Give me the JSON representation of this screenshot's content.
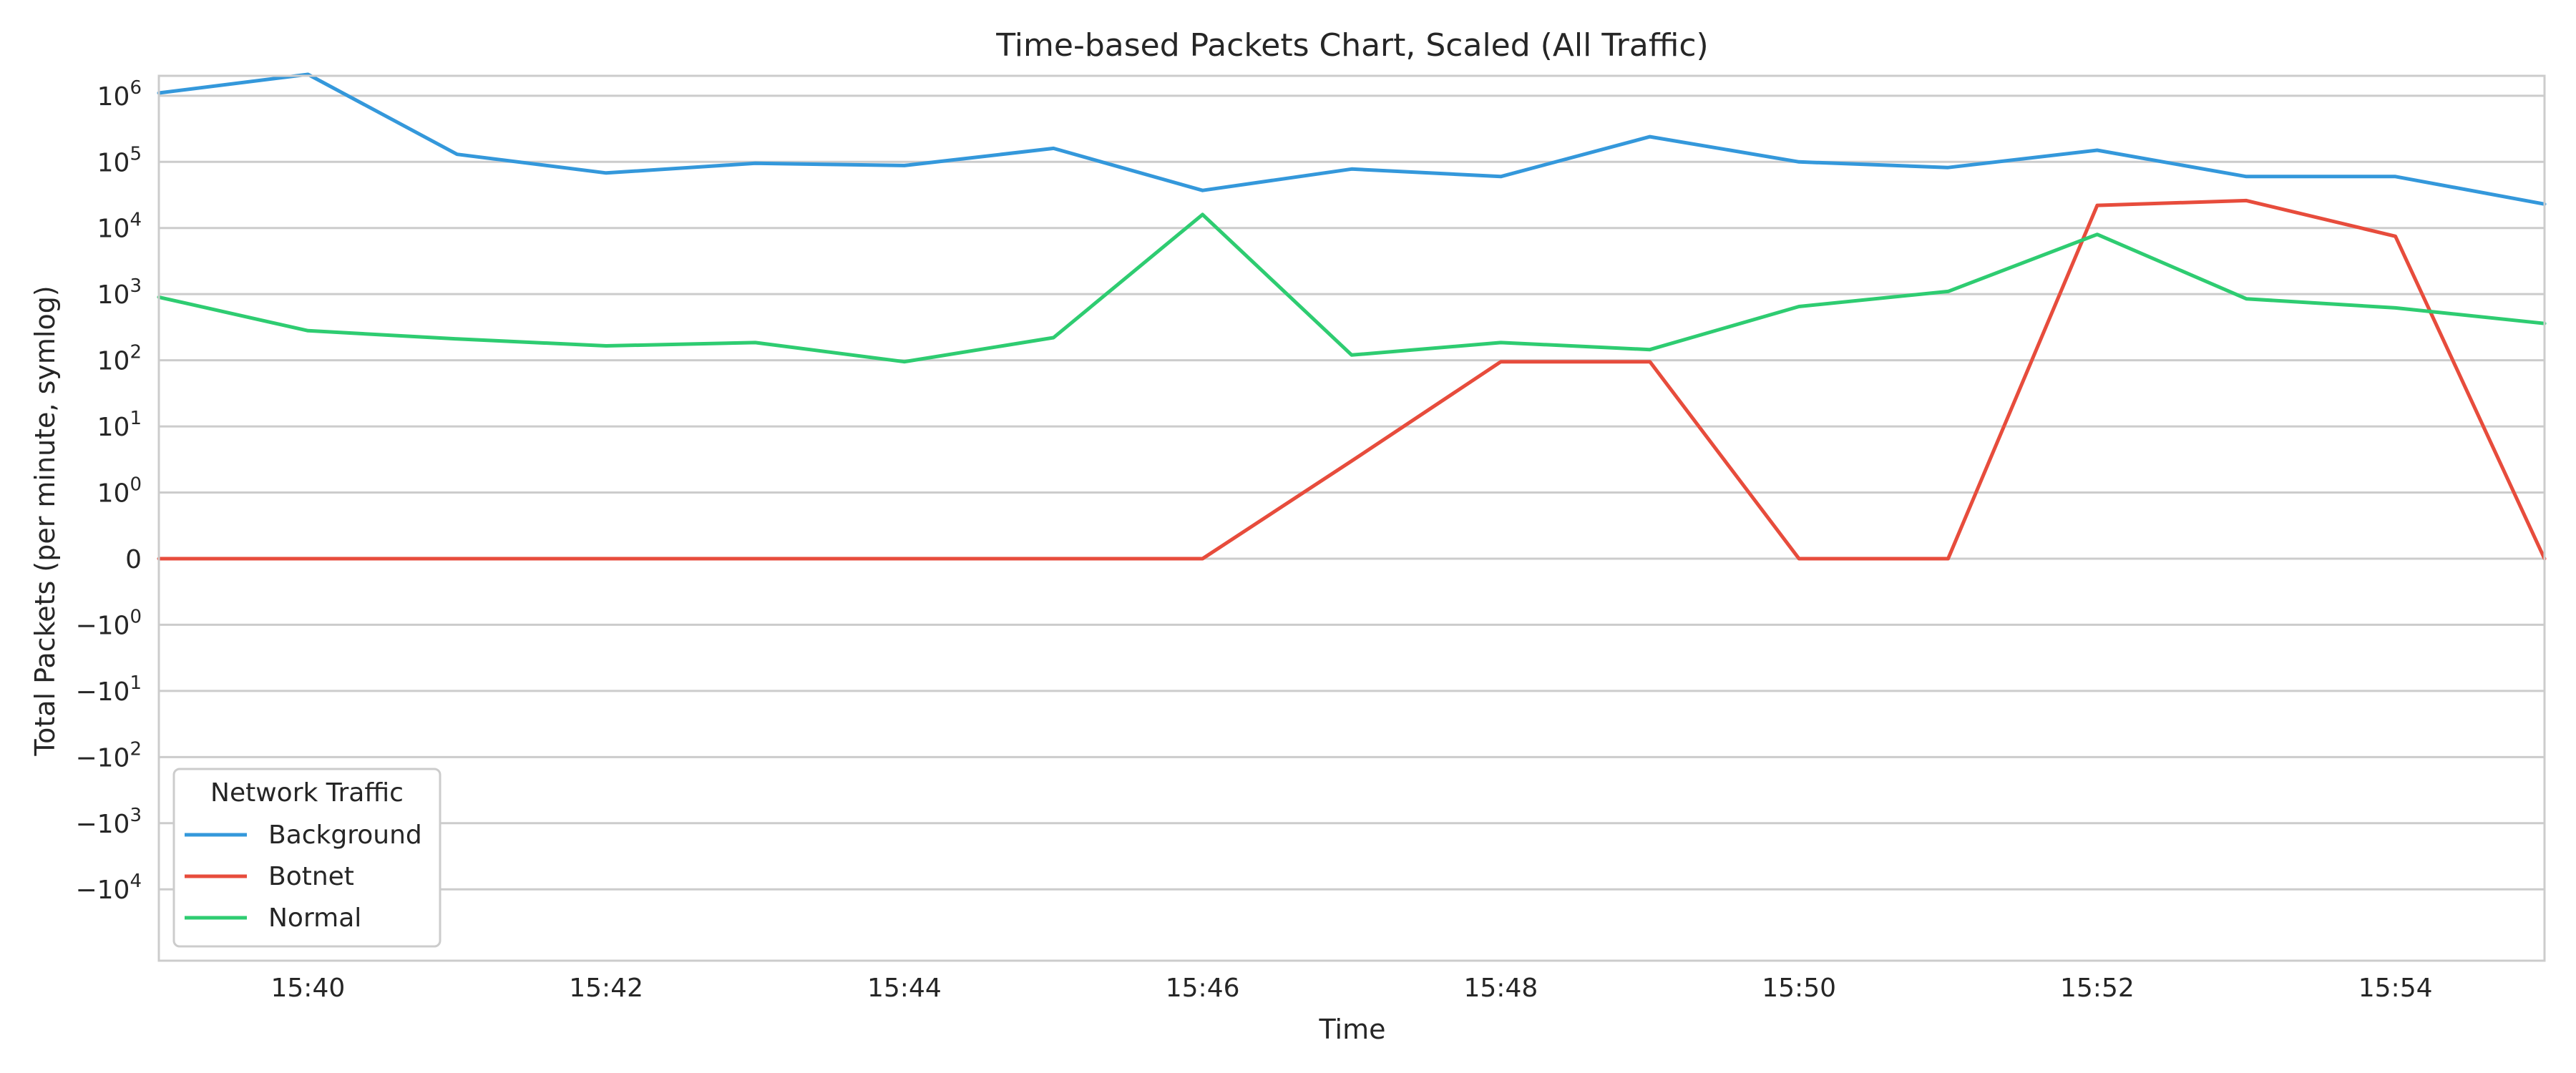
{
  "chart_data": {
    "type": "line",
    "title": "Time-based Packets Chart, Scaled (All Traffic)",
    "xlabel": "Time",
    "ylabel": "Total Packets (per minute, symlog)",
    "y_scale": "symlog",
    "y_linthresh": 1,
    "ylim": [
      -120000,
      2000000
    ],
    "grid": true,
    "x": [
      "15:39",
      "15:40",
      "15:41",
      "15:42",
      "15:43",
      "15:44",
      "15:45",
      "15:46",
      "15:47",
      "15:48",
      "15:49",
      "15:50",
      "15:51",
      "15:52",
      "15:53",
      "15:54",
      "15:55"
    ],
    "x_ticks": [
      "15:40",
      "15:42",
      "15:44",
      "15:46",
      "15:48",
      "15:50",
      "15:52",
      "15:54"
    ],
    "y_ticks": [
      {
        "value": 1000000,
        "base": "10",
        "exp": "6"
      },
      {
        "value": 100000,
        "base": "10",
        "exp": "5"
      },
      {
        "value": 10000,
        "base": "10",
        "exp": "4"
      },
      {
        "value": 1000,
        "base": "10",
        "exp": "3"
      },
      {
        "value": 100,
        "base": "10",
        "exp": "2"
      },
      {
        "value": 10,
        "base": "10",
        "exp": "1"
      },
      {
        "value": 1,
        "base": "10",
        "exp": "0"
      },
      {
        "value": 0,
        "base": "0",
        "exp": ""
      },
      {
        "value": -1,
        "base": "−10",
        "exp": "0"
      },
      {
        "value": -10,
        "base": "−10",
        "exp": "1"
      },
      {
        "value": -100,
        "base": "−10",
        "exp": "2"
      },
      {
        "value": -1000,
        "base": "−10",
        "exp": "3"
      },
      {
        "value": -10000,
        "base": "−10",
        "exp": "4"
      }
    ],
    "legend": {
      "title": "Network Traffic",
      "position": "lower-left"
    },
    "series": [
      {
        "name": "Background",
        "color": "#3498db",
        "values": [
          1100000,
          2100000,
          130000,
          68000,
          95000,
          88000,
          160000,
          37000,
          78000,
          60000,
          240000,
          100000,
          82000,
          150000,
          60000,
          60000,
          23000
        ]
      },
      {
        "name": "Botnet",
        "color": "#e74c3c",
        "values": [
          0,
          0,
          0,
          0,
          0,
          0,
          0,
          0,
          3,
          95,
          95,
          0,
          0,
          22000,
          26000,
          7500,
          0
        ]
      },
      {
        "name": "Normal",
        "color": "#2ecc71",
        "values": [
          900,
          280,
          210,
          165,
          185,
          95,
          220,
          16000,
          120,
          185,
          145,
          650,
          1100,
          8000,
          850,
          620,
          360
        ]
      }
    ]
  }
}
